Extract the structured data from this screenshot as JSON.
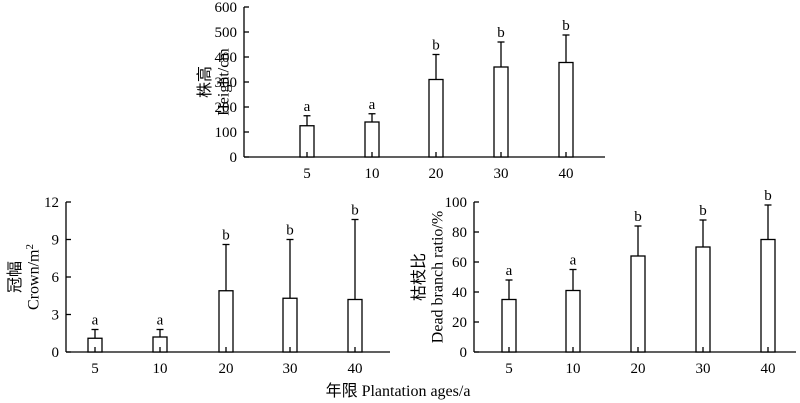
{
  "chart_data": [
    {
      "type": "bar",
      "ylabel_cn": "株高",
      "ylabel_en": "Height/cm",
      "categories": [
        "5",
        "10",
        "20",
        "30",
        "40"
      ],
      "values": [
        125,
        140,
        310,
        360,
        378
      ],
      "errors": [
        40,
        33,
        100,
        100,
        110
      ],
      "significance": [
        "a",
        "a",
        "b",
        "b",
        "b"
      ],
      "ylim": [
        0,
        600
      ],
      "yticks": [
        0,
        100,
        200,
        300,
        400,
        500,
        600
      ]
    },
    {
      "type": "bar",
      "ylabel_cn": "冠幅",
      "ylabel_en": "Crown/m",
      "ylabel_sup": "2",
      "categories": [
        "5",
        "10",
        "20",
        "30",
        "40"
      ],
      "values": [
        1.1,
        1.2,
        4.9,
        4.3,
        4.2
      ],
      "errors": [
        0.7,
        0.6,
        3.7,
        4.7,
        6.4
      ],
      "significance": [
        "a",
        "a",
        "b",
        "b",
        "b"
      ],
      "ylim": [
        0,
        12
      ],
      "yticks": [
        0,
        3,
        6,
        9,
        12
      ]
    },
    {
      "type": "bar",
      "ylabel_cn": "枯枝比",
      "ylabel_en": "Dead branch ratio/%",
      "categories": [
        "5",
        "10",
        "20",
        "30",
        "40"
      ],
      "values": [
        35,
        41,
        64,
        70,
        75
      ],
      "errors": [
        13,
        14,
        20,
        18,
        23
      ],
      "significance": [
        "a",
        "a",
        "b",
        "b",
        "b"
      ],
      "ylim": [
        0,
        100
      ],
      "yticks": [
        0,
        20,
        40,
        60,
        80,
        100
      ]
    }
  ],
  "shared_xlabel": "年限 Plantation ages/a"
}
